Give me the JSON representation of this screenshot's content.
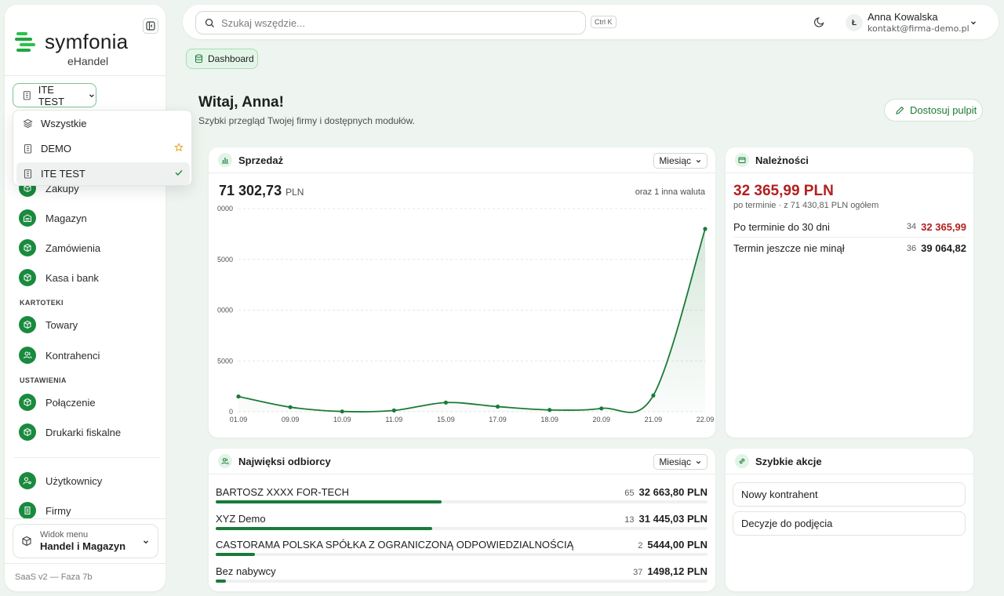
{
  "sidebar": {
    "logo_text": "symfonia",
    "logo_sub": "eHandel",
    "company": "ITE TEST",
    "dropdown": [
      {
        "label": "Wszystkie"
      },
      {
        "label": "DEMO"
      },
      {
        "label": "ITE TEST"
      }
    ],
    "nav_top": [
      {
        "label": "Zakupy"
      },
      {
        "label": "Magazyn"
      },
      {
        "label": "Zamówienia"
      },
      {
        "label": "Kasa i bank"
      }
    ],
    "section_kartoteki": "KARTOTEKI",
    "nav_kartoteki": [
      {
        "label": "Towary"
      },
      {
        "label": "Kontrahenci"
      }
    ],
    "section_ustawienia": "USTAWIENIA",
    "nav_ustawienia": [
      {
        "label": "Połączenie"
      },
      {
        "label": "Drukarki fiskalne"
      }
    ],
    "nav_bottom": [
      {
        "label": "Użytkownicy"
      },
      {
        "label": "Firmy"
      }
    ],
    "view_menu_label": "Widok menu",
    "view_menu_value": "Handel i Magazyn",
    "version": "SaaS v2 — Faza 7b"
  },
  "topbar": {
    "search_placeholder": "Szukaj wszędzie...",
    "shortcut": "Ctrl K",
    "avatar_initial": "Ł",
    "user_name": "Anna Kowalska",
    "user_email": "kontakt@firma-demo.pl"
  },
  "breadcrumb": "Dashboard",
  "greeting": {
    "title": "Witaj, Anna!",
    "subtitle": "Szybki przegląd Twojej firmy i dostępnych modułów.",
    "customize_label": "Dostosuj pulpit"
  },
  "sales": {
    "title": "Sprzedaż",
    "period": "Miesiąc",
    "total": "71 302,73",
    "currency": "PLN",
    "other": "oraz 1 inna waluta"
  },
  "receivables": {
    "title": "Należności",
    "total": "32 365,99 PLN",
    "subtitle": "po terminie · z 71 430,81 PLN ogółem",
    "rows": [
      {
        "label": "Po terminie do 30 dni",
        "count": "34",
        "amount": "32 365,99"
      },
      {
        "label": "Termin jeszcze nie minął",
        "count": "36",
        "amount": "39 064,82"
      }
    ]
  },
  "buyers": {
    "title": "Najwięksi odbiorcy",
    "period": "Miesiąc",
    "rows": [
      {
        "name": "BARTOSZ XXXX FOR-TECH",
        "count": "65",
        "amount": "32 663,80 PLN",
        "share": 0.46
      },
      {
        "name": "XYZ Demo",
        "count": "13",
        "amount": "31 445,03 PLN",
        "share": 0.44
      },
      {
        "name": "CASTORAMA POLSKA SPÓŁKA Z OGRANICZONĄ ODPOWIEDZIALNOŚCIĄ",
        "count": "2",
        "amount": "5444,00 PLN",
        "share": 0.08
      },
      {
        "name": "Bez nabywcy",
        "count": "37",
        "amount": "1498,12 PLN",
        "share": 0.02
      }
    ]
  },
  "quick_actions": {
    "title": "Szybkie akcje",
    "items": [
      {
        "label": "Nowy kontrahent"
      },
      {
        "label": "Decyzje do podjęcia"
      }
    ]
  },
  "colors": {
    "accent": "#1b7a38",
    "danger": "#b31f1f",
    "background": "#eef4ef"
  },
  "chart_data": {
    "type": "area",
    "title": "",
    "xlabel": "",
    "ylabel": "",
    "categories": [
      "01.09",
      "09.09",
      "10.09",
      "11.09",
      "15.09",
      "17.09",
      "18.09",
      "20.09",
      "21.09",
      "22.09"
    ],
    "values": [
      3000,
      900,
      50,
      250,
      1800,
      1000,
      350,
      650,
      3200,
      36000
    ],
    "y_tick_labels": [
      "0",
      "5000",
      "0000",
      "5000",
      "0000"
    ],
    "ylim": [
      0,
      40000
    ],
    "grid": true
  }
}
